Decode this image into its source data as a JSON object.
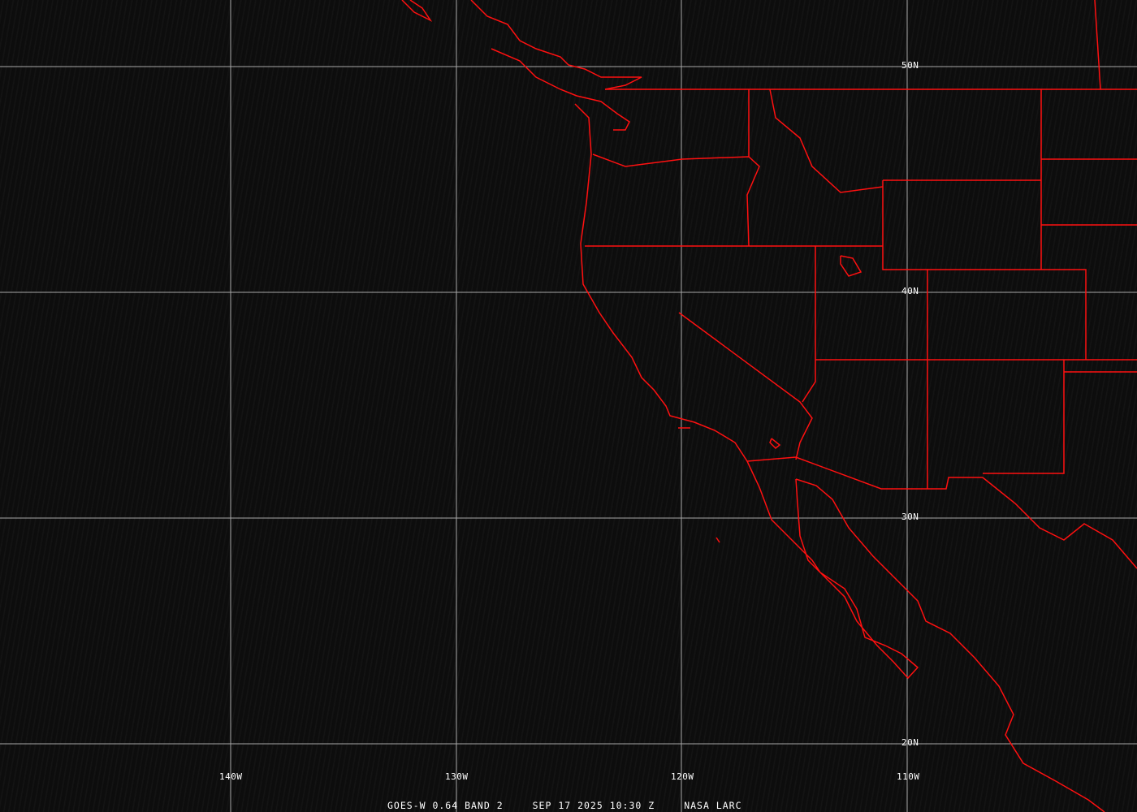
{
  "map": {
    "grid_color": "#b0b0b0",
    "boundary_color": "#ff0000",
    "lon_labels": [
      "140W",
      "130W",
      "120W",
      "110W"
    ],
    "lat_labels": [
      "50N",
      "40N",
      "30N",
      "20N"
    ]
  },
  "caption": {
    "satellite": "GOES-W 0.64 BAND 2",
    "datetime": "SEP 17 2025 10:30 Z",
    "source": "NASA LARC"
  }
}
